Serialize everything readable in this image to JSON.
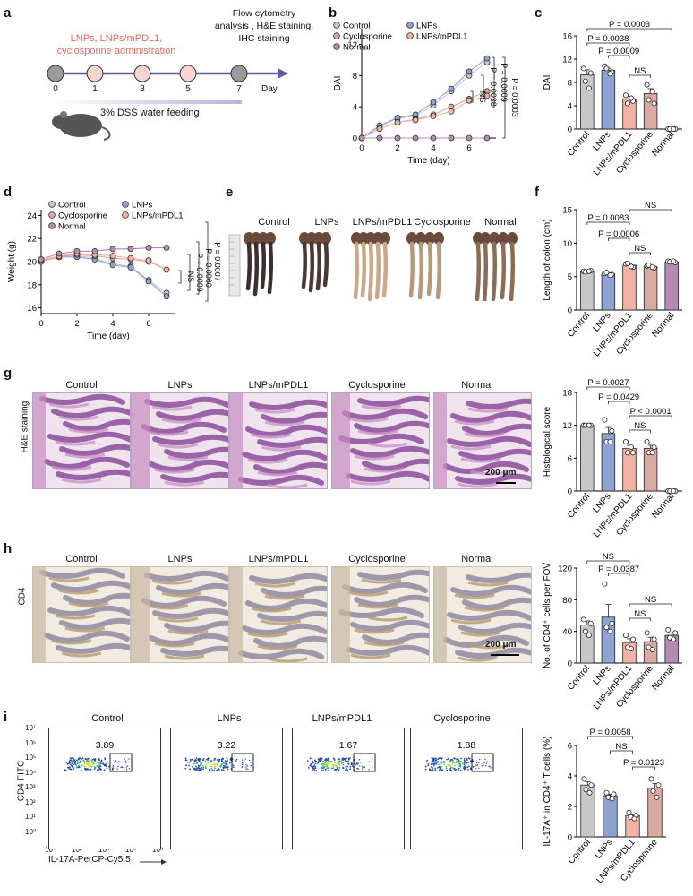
{
  "panels": {
    "a": "a",
    "b": "b",
    "c": "c",
    "d": "d",
    "e": "e",
    "f": "f",
    "g": "g",
    "h": "h",
    "i": "i"
  },
  "panel_a": {
    "admin_text": "LNPs, LNPs/mPDL1,\ncyclosporine administration",
    "flow_text": "Flow cytometry\nanalysis , H&E staining,\nIHC staining",
    "days": [
      "0",
      "1",
      "3",
      "5",
      "7"
    ],
    "day_label": "Day",
    "dss_label": "3% DSS water feeding",
    "colors": {
      "admin": "#e06a5a",
      "timeline": "#5b5ea6",
      "circle_fill": "#f7d6d2"
    }
  },
  "panel_e": {
    "labels": [
      "Control",
      "LNPs",
      "LNPs/mPDL1",
      "Cyclosporine",
      "Normal"
    ]
  },
  "panel_g": {
    "ylabel": "H&E staining",
    "labels": [
      "Control",
      "LNPs",
      "LNPs/mPDL1",
      "Cyclosporine",
      "Normal"
    ],
    "scale": "200 μm"
  },
  "panel_h": {
    "ylabel": "CD4",
    "labels": [
      "Control",
      "LNPs",
      "LNPs/mPDL1",
      "Cyclosporine",
      "Normal"
    ],
    "scale": "200 μm"
  },
  "panel_i": {
    "labels": [
      "Control",
      "LNPs",
      "LNPs/mPDL1",
      "Cyclosporine"
    ],
    "gate_values": [
      "3.89",
      "3.22",
      "1.67",
      "1.88"
    ],
    "ylabel": "CD4-FITC",
    "xlabel": "IL-17A-PerCP-Cy5.5",
    "y_ticks": [
      "10⁷",
      "10⁶",
      "10⁵",
      "10⁴",
      "10³",
      "10²",
      "10¹",
      "10⁰"
    ],
    "x_ticks": [
      "10⁰",
      "10²",
      "10⁴",
      "10⁶",
      "10⁸"
    ]
  },
  "colors": {
    "Control": "#c8c8c8",
    "LNPs": "#8ea3d1",
    "LNPs/mPDL1": "#f2b3a6",
    "Cyclosporine": "#d9a9a2",
    "Normal": "#b58bb5"
  },
  "chart_data": [
    {
      "id": "b",
      "type": "line",
      "xlabel": "Time (day)",
      "ylabel": "DAI",
      "x": [
        0,
        1,
        2,
        3,
        4,
        5,
        6,
        7
      ],
      "xticks": [
        0,
        2,
        4,
        6
      ],
      "yticks": [
        0,
        4,
        8,
        12
      ],
      "ylim": [
        0,
        14
      ],
      "legend": [
        "Control",
        "LNPs",
        "Cyclosporine",
        "LNPs/mPDL1",
        "Normal"
      ],
      "series": [
        {
          "name": "Control",
          "values": [
            0,
            1.5,
            2.5,
            2.8,
            4.2,
            6.0,
            8.0,
            9.7
          ]
        },
        {
          "name": "LNPs",
          "values": [
            0,
            1.6,
            2.6,
            3.0,
            4.6,
            6.3,
            8.5,
            10.2
          ]
        },
        {
          "name": "Cyclosporine",
          "values": [
            0,
            1.2,
            2.0,
            2.4,
            3.0,
            4.0,
            5.0,
            6.0
          ]
        },
        {
          "name": "LNPs/mPDL1",
          "values": [
            0,
            1.2,
            2.0,
            2.3,
            2.8,
            3.4,
            4.8,
            5.4
          ]
        },
        {
          "name": "Normal",
          "values": [
            0,
            0,
            0,
            0,
            0,
            0,
            0,
            0
          ]
        }
      ],
      "annotations": [
        "NS",
        "P = 0.0038",
        "P = 0.0009",
        "P = 0.0003"
      ]
    },
    {
      "id": "c",
      "type": "bar",
      "ylabel": "DAI",
      "categories": [
        "Control",
        "LNPs",
        "LNPs/mPDL1",
        "Cyclosporine",
        "Normal"
      ],
      "values": [
        9.3,
        10.1,
        5.2,
        6.1,
        0
      ],
      "yticks": [
        0,
        4,
        8,
        12,
        16
      ],
      "ylim": [
        0,
        16
      ],
      "points": [
        [
          10.4,
          9.6,
          8.2,
          7.0
        ],
        [
          10.8,
          9.8,
          10.4,
          9.5
        ],
        [
          5.8,
          4.8,
          4.4,
          5.3
        ],
        [
          7.6,
          4.4,
          5.0,
          6.4
        ],
        [
          0,
          0,
          0,
          0
        ]
      ],
      "annotations": [
        "P = 0.0003",
        "P = 0.0038",
        "P = 0.0009",
        "NS"
      ]
    },
    {
      "id": "d",
      "type": "line",
      "xlabel": "Time (day)",
      "ylabel": "Weight (g)",
      "x": [
        0,
        1,
        2,
        3,
        4,
        5,
        6,
        7
      ],
      "xticks": [
        0,
        2,
        4,
        6
      ],
      "yticks": [
        16,
        18,
        20,
        22,
        24
      ],
      "ylim": [
        15.5,
        24.5
      ],
      "legend": [
        "Control",
        "LNPs",
        "Cyclosporine",
        "LNPs/mPDL1",
        "Normal"
      ],
      "series": [
        {
          "name": "Control",
          "values": [
            20.0,
            20.5,
            20.5,
            20.3,
            19.8,
            19.6,
            18.4,
            17.3
          ]
        },
        {
          "name": "LNPs",
          "values": [
            20.1,
            20.4,
            20.4,
            20.2,
            19.7,
            19.5,
            18.3,
            17.0
          ]
        },
        {
          "name": "Cyclosporine",
          "values": [
            20.0,
            20.4,
            20.6,
            20.5,
            20.3,
            20.2,
            20.0,
            19.3
          ]
        },
        {
          "name": "LNPs/mPDL1",
          "values": [
            20.1,
            20.5,
            20.7,
            20.6,
            20.5,
            20.3,
            20.1,
            19.3
          ]
        },
        {
          "name": "Normal",
          "values": [
            20.2,
            20.7,
            20.9,
            20.9,
            21.1,
            21.1,
            21.2,
            21.2
          ]
        }
      ],
      "annotations": [
        "NS",
        "P = 0.0009",
        "P = 0.0060",
        "P = 0.0007"
      ]
    },
    {
      "id": "f",
      "type": "bar",
      "ylabel": "Length of colon (cm)",
      "categories": [
        "Control",
        "LNPs",
        "LNPs/mPDL1",
        "Cyclosporine",
        "Normal"
      ],
      "values": [
        5.8,
        5.4,
        6.7,
        6.5,
        7.2
      ],
      "yticks": [
        0,
        5,
        10,
        15
      ],
      "ylim": [
        0,
        15
      ],
      "points": [
        [
          5.8,
          5.9,
          5.7,
          5.8
        ],
        [
          5.5,
          5.3,
          5.6,
          5.2
        ],
        [
          6.9,
          6.4,
          7.0,
          6.5
        ],
        [
          6.6,
          6.3,
          6.7,
          6.4
        ],
        [
          7.3,
          7.1,
          7.2,
          7.3
        ]
      ],
      "annotations": [
        "NS",
        "P = 0.0083",
        "P = 0.0006",
        "NS"
      ]
    },
    {
      "id": "g",
      "type": "bar",
      "ylabel": "Histological score",
      "categories": [
        "Control",
        "LNPs",
        "LNPs/mPDL1",
        "Cyclosporine",
        "Normal"
      ],
      "values": [
        12.0,
        10.5,
        7.8,
        7.8,
        0
      ],
      "yticks": [
        0,
        6,
        12,
        18
      ],
      "ylim": [
        0,
        18
      ],
      "points": [
        [
          12,
          12,
          12,
          12
        ],
        [
          13,
          11,
          9,
          9
        ],
        [
          9,
          7,
          7,
          8
        ],
        [
          9,
          8,
          7,
          7
        ],
        [
          0,
          0,
          0,
          0
        ]
      ],
      "annotations": [
        "P = 0.0027",
        "P = 0.0429",
        "P < 0.0001",
        "NS"
      ]
    },
    {
      "id": "h",
      "type": "bar",
      "ylabel": "No. of CD4⁺ cells per FOV",
      "categories": [
        "Control",
        "LNPs",
        "LNPs/mPDL1",
        "Cyclosporine",
        "Normal"
      ],
      "values": [
        48,
        58,
        26,
        27,
        35
      ],
      "yticks": [
        0,
        40,
        80,
        120
      ],
      "ylim": [
        0,
        120
      ],
      "points": [
        [
          55,
          50,
          40,
          35
        ],
        [
          100,
          50,
          45,
          40
        ],
        [
          35,
          30,
          20,
          18
        ],
        [
          38,
          30,
          20,
          17
        ],
        [
          42,
          38,
          32,
          30
        ]
      ],
      "annotations": [
        "NS",
        "P = 0.0387",
        "NS",
        "NS"
      ]
    },
    {
      "id": "i",
      "type": "bar",
      "ylabel": "IL-17A⁺ in CD4⁺ T cells (%)",
      "categories": [
        "Control",
        "LNPs",
        "LNPs/mPDL1",
        "Cyclosporine"
      ],
      "values": [
        3.4,
        2.7,
        1.4,
        3.2
      ],
      "yticks": [
        0,
        2,
        4,
        6
      ],
      "ylim": [
        0,
        6
      ],
      "points": [
        [
          3.8,
          3.4,
          3.1,
          2.9
        ],
        [
          2.9,
          2.8,
          2.6,
          2.5
        ],
        [
          1.6,
          1.4,
          1.3,
          1.2
        ],
        [
          3.8,
          3.4,
          3.0,
          2.6
        ]
      ],
      "annotations": [
        "P = 0.0058",
        "NS",
        "P = 0.0123"
      ]
    }
  ]
}
